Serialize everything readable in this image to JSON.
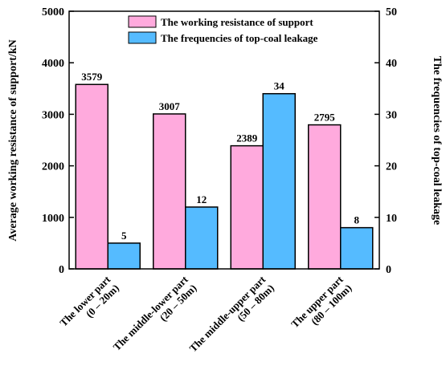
{
  "chart_data": {
    "type": "bar",
    "categories": [
      [
        "The lower part",
        "(0 – 20m)"
      ],
      [
        "The middle-lower part",
        "(20 – 50m)"
      ],
      [
        "The middle-upper part",
        "(50 – 80m)"
      ],
      [
        "The upper part",
        "(80 – 100m)"
      ]
    ],
    "series": [
      {
        "name": "The working resistance of support",
        "axis": "left",
        "color": "#ffaadd",
        "values": [
          3579,
          3007,
          2389,
          2795
        ],
        "labels": [
          "3579",
          "3007",
          "2389",
          "2795"
        ]
      },
      {
        "name": "The frequencies of top-coal leakage",
        "axis": "right",
        "color": "#55bbff",
        "values": [
          5,
          12,
          34,
          8
        ],
        "labels": [
          "5",
          "12",
          "34",
          "8"
        ]
      }
    ],
    "y_left": {
      "label": "Average working resistance of support/kN",
      "range": [
        0,
        5000
      ],
      "ticks": [
        0,
        1000,
        2000,
        3000,
        4000,
        5000
      ],
      "tick_labels": [
        "0",
        "1000",
        "2000",
        "3000",
        "4000",
        "5000"
      ]
    },
    "y_right": {
      "label": "The frequencies of top-coal leakage",
      "range": [
        0,
        50
      ],
      "ticks": [
        0,
        10,
        20,
        30,
        40,
        50
      ],
      "tick_labels": [
        "0",
        "10",
        "20",
        "30",
        "40",
        "50"
      ]
    },
    "grid": false,
    "legend_position": "top-center"
  }
}
